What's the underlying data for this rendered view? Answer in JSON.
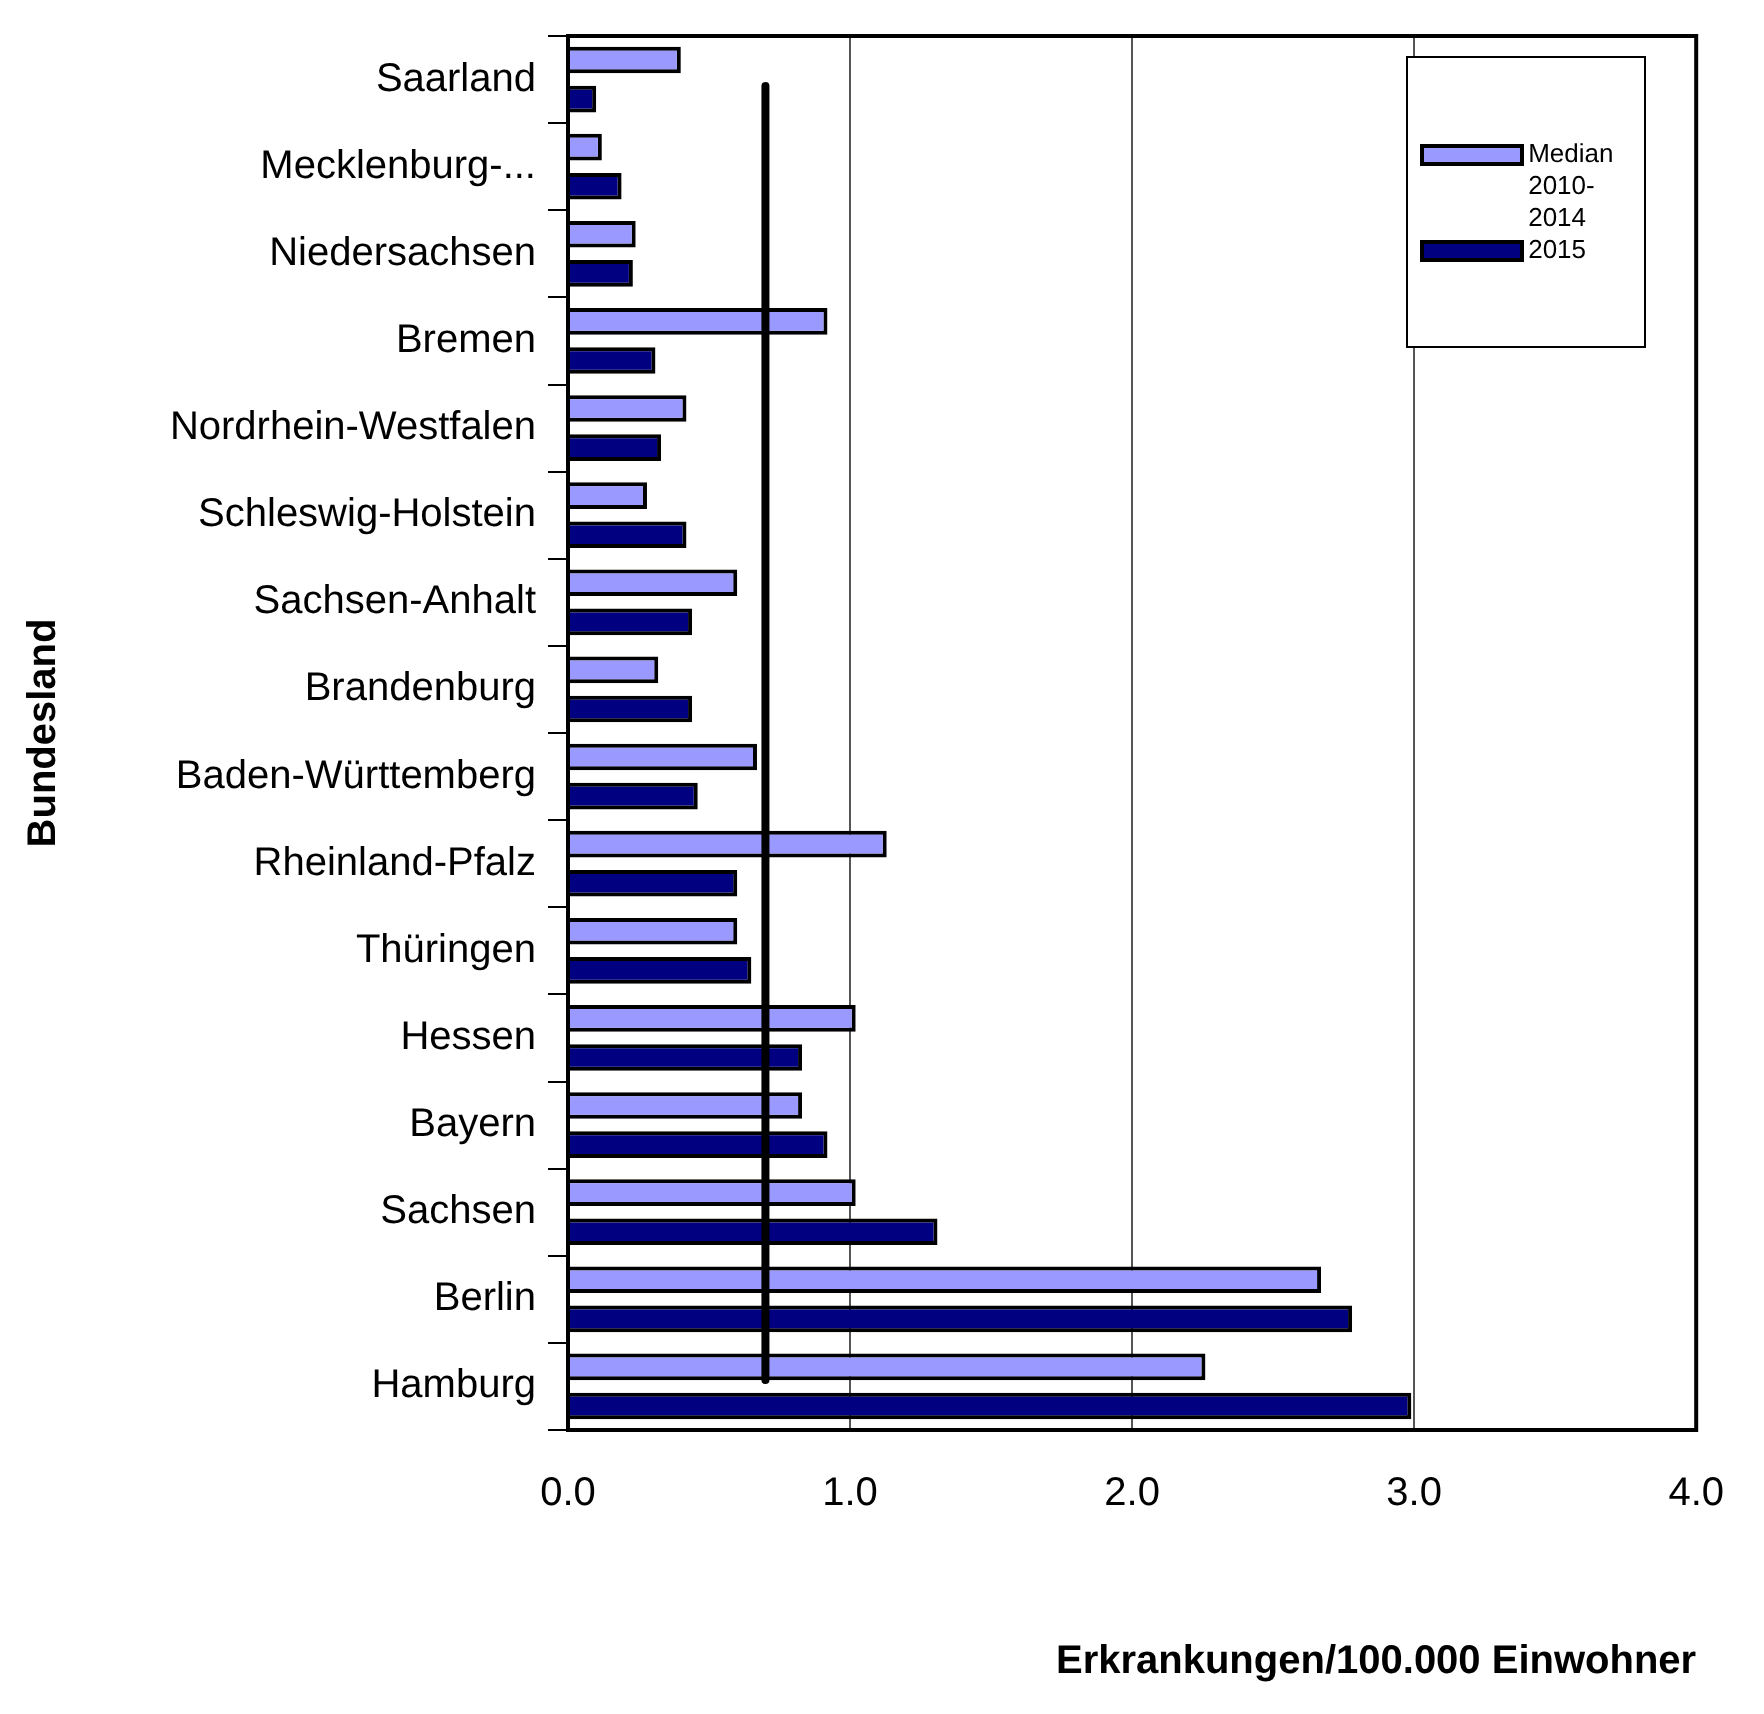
{
  "chart_data": {
    "type": "bar",
    "orientation": "horizontal",
    "ylabel": "Bundesland",
    "xlabel": "Erkrankungen/100.000 Einwohner",
    "categories": [
      "Saarland",
      "Mecklenburg-...",
      "Niedersachsen",
      "Bremen",
      "Nordrhein-Westfalen",
      "Schleswig-Holstein",
      "Sachsen-Anhalt",
      "Brandenburg",
      "Baden-Württemberg",
      "Rheinland-Pfalz",
      "Thüringen",
      "Hessen",
      "Bayern",
      "Sachsen",
      "Berlin",
      "Hamburg"
    ],
    "series": [
      {
        "name": "Median 2010-2014",
        "color": "#9999ff",
        "values": [
          0.4,
          0.12,
          0.24,
          0.92,
          0.42,
          0.28,
          0.6,
          0.32,
          0.67,
          1.13,
          0.6,
          1.02,
          0.83,
          1.02,
          2.67,
          2.26
        ]
      },
      {
        "name": "2015",
        "color": "#000080",
        "values": [
          0.1,
          0.19,
          0.23,
          0.31,
          0.33,
          0.42,
          0.44,
          0.44,
          0.46,
          0.6,
          0.65,
          0.83,
          0.92,
          1.31,
          2.78,
          2.99
        ]
      }
    ],
    "xlim": [
      0,
      4
    ],
    "xticks": [
      {
        "value": 0,
        "label": "0.0"
      },
      {
        "value": 1,
        "label": "1.0"
      },
      {
        "value": 2,
        "label": "2.0"
      },
      {
        "value": 3,
        "label": "3.0"
      },
      {
        "value": 4,
        "label": "4.0"
      }
    ],
    "ref_lines": [
      {
        "axis": "x",
        "value": 0.7,
        "color": "#000000"
      }
    ],
    "grid": "x",
    "legend": "top right"
  }
}
